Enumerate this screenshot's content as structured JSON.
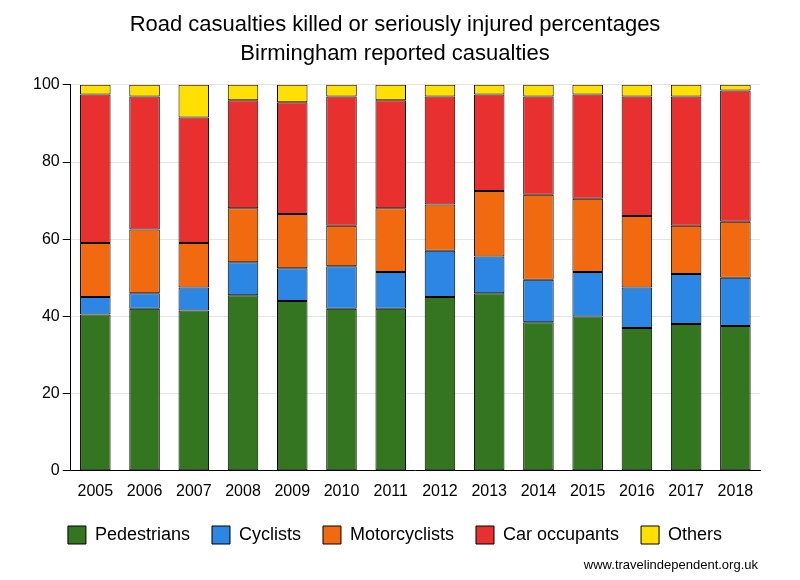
{
  "chart_data": {
    "type": "bar",
    "title": "Road casualties killed or seriously injured percentages",
    "subtitle": "Birmingham reported casualties",
    "source": "www.travelindependent.org.uk",
    "categories": [
      "2005",
      "2006",
      "2007",
      "2008",
      "2009",
      "2010",
      "2011",
      "2012",
      "2013",
      "2014",
      "2015",
      "2016",
      "2017",
      "2018"
    ],
    "series": [
      {
        "name": "Pedestrians",
        "color": "#34761f",
        "values": [
          40.5,
          42,
          41.5,
          45.5,
          44,
          42,
          42,
          45,
          46,
          38.5,
          40,
          37,
          38,
          37.5
        ]
      },
      {
        "name": "Cyclists",
        "color": "#2b87e3",
        "values": [
          4.5,
          4,
          6,
          8.5,
          8.5,
          11,
          9.5,
          12,
          9.5,
          11,
          11.5,
          10.5,
          13,
          12.5
        ]
      },
      {
        "name": "Motorcyclists",
        "color": "#f26a10",
        "values": [
          14,
          16.5,
          11.5,
          14,
          14,
          10.5,
          16.5,
          12,
          17,
          22,
          19,
          18.5,
          12.5,
          14.5
        ]
      },
      {
        "name": "Car occupants",
        "color": "#e8312f",
        "values": [
          38.5,
          34.5,
          32.5,
          28,
          29,
          33.5,
          28,
          28,
          25,
          25.5,
          27,
          31,
          33.5,
          34
        ]
      },
      {
        "name": "Others",
        "color": "#ffe000",
        "values": [
          2.5,
          3,
          8.5,
          4,
          4.5,
          3,
          4,
          3,
          2.5,
          3,
          2.5,
          3,
          3,
          1.5
        ]
      }
    ],
    "ylim": [
      0,
      100
    ],
    "yticks": [
      0,
      20,
      40,
      60,
      80,
      100
    ],
    "stacked": true,
    "grid": true,
    "legend": "bottom"
  }
}
